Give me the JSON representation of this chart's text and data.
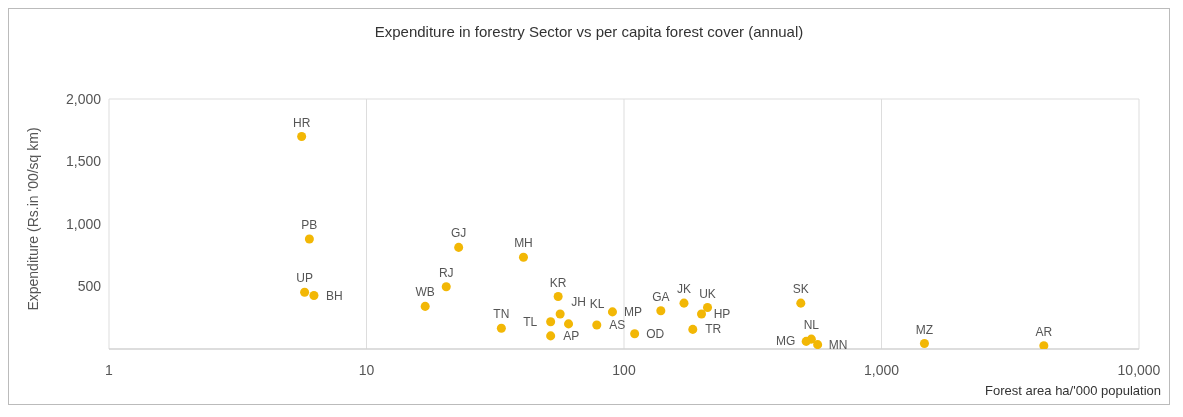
{
  "chart_data": {
    "type": "scatter",
    "title": "Expenditure in forestry Sector vs per capita forest cover (annual)",
    "xlabel": "Forest area ha/'000 population",
    "ylabel": "Expenditure  (Rs.in '00/sq km)",
    "log": "x",
    "grid": true,
    "marker": "circle",
    "xlim": [
      1,
      10000
    ],
    "xticks": [
      1,
      10,
      100,
      {
        "value": 1000,
        "label": "1,000"
      },
      {
        "value": 10000,
        "label": "10,000"
      }
    ],
    "ylim": [
      0,
      2000
    ],
    "yticks": [
      {
        "value": 0,
        "label": null
      },
      500,
      {
        "value": 1000,
        "label": "1,000"
      },
      {
        "value": 1500,
        "label": "1,500"
      },
      {
        "value": 2000,
        "label": "2,000"
      }
    ],
    "series": [
      {
        "color": "#f2b705",
        "x": [
          5.6,
          6.0,
          5.75,
          6.25,
          16.9,
          22.8,
          20.4,
          40.7,
          33.4,
          51.9,
          55.5,
          51.9,
          56.5,
          60.9,
          78.4,
          90.2,
          110,
          139,
          171,
          211,
          200,
          185,
          486,
          534,
          510,
          565,
          1468,
          4270
        ],
        "values": [
          1700,
          880,
          454,
          428,
          341,
          813,
          498,
          734,
          166,
          105,
          420,
          218,
          280,
          201,
          192,
          297,
          122,
          306,
          367,
          332,
          280,
          157,
          367,
          79,
          61,
          35,
          44,
          26
        ]
      }
    ],
    "annotations": [
      {
        "text": "HR",
        "x": 5.6,
        "y": 1700
      },
      {
        "text": "PB",
        "x": 6.0,
        "y": 880
      },
      {
        "text": "UP",
        "x": 5.75,
        "y": 454
      },
      {
        "text": "BH",
        "x": 6.25,
        "y": 428
      },
      {
        "text": "WB",
        "x": 16.9,
        "y": 341
      },
      {
        "text": "GJ",
        "x": 22.8,
        "y": 813
      },
      {
        "text": "RJ",
        "x": 20.4,
        "y": 498
      },
      {
        "text": "MH",
        "x": 40.7,
        "y": 734
      },
      {
        "text": "TN",
        "x": 33.4,
        "y": 166
      },
      {
        "text": "AP",
        "x": 51.9,
        "y": 105
      },
      {
        "text": "KR",
        "x": 55.5,
        "y": 420
      },
      {
        "text": "TL",
        "x": 51.9,
        "y": 218
      },
      {
        "text": "JH",
        "x": 56.5,
        "y": 280
      },
      {
        "text": "KL",
        "x": 60.9,
        "y": 201
      },
      {
        "text": "AS",
        "x": 78.4,
        "y": 192
      },
      {
        "text": "MP",
        "x": 90.2,
        "y": 297
      },
      {
        "text": "OD",
        "x": 110,
        "y": 122
      },
      {
        "text": "GA",
        "x": 139,
        "y": 306
      },
      {
        "text": "JK",
        "x": 171,
        "y": 367
      },
      {
        "text": "UK",
        "x": 211,
        "y": 332
      },
      {
        "text": "HP",
        "x": 200,
        "y": 280
      },
      {
        "text": "TR",
        "x": 185,
        "y": 157
      },
      {
        "text": "SK",
        "x": 486,
        "y": 367
      },
      {
        "text": "NL",
        "x": 534,
        "y": 79
      },
      {
        "text": "MG",
        "x": 510,
        "y": 61
      },
      {
        "text": "MN",
        "x": 565,
        "y": 35
      },
      {
        "text": "MZ",
        "x": 1468,
        "y": 44
      },
      {
        "text": "AR",
        "x": 4270,
        "y": 26
      }
    ]
  }
}
